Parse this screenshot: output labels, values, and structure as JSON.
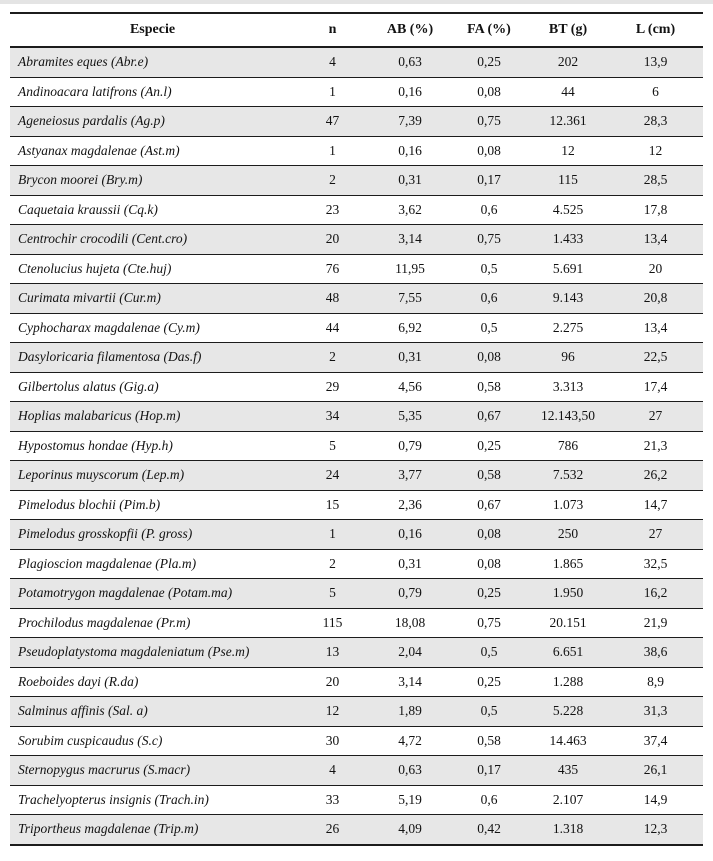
{
  "colors": {
    "row_shade": "#e7e7e7",
    "rule_color": "#1c1c1c",
    "text_color": "#121212",
    "strip_color": "#e4e4e4"
  },
  "table": {
    "columns": [
      {
        "key": "especie",
        "label": "Especie"
      },
      {
        "key": "n",
        "label": "n"
      },
      {
        "key": "ab",
        "label": "AB (%)"
      },
      {
        "key": "fa",
        "label": "FA (%)"
      },
      {
        "key": "bt",
        "label": "BT (g)"
      },
      {
        "key": "l",
        "label": "L (cm)"
      }
    ],
    "rows": [
      {
        "especie": "Abramites eques (Abr.e)",
        "n": "4",
        "ab": "0,63",
        "fa": "0,25",
        "bt": "202",
        "l": "13,9"
      },
      {
        "especie": "Andinoacara latifrons (An.l)",
        "n": "1",
        "ab": "0,16",
        "fa": "0,08",
        "bt": "44",
        "l": "6"
      },
      {
        "especie": "Ageneiosus pardalis (Ag.p)",
        "n": "47",
        "ab": "7,39",
        "fa": "0,75",
        "bt": "12.361",
        "l": "28,3"
      },
      {
        "especie": "Astyanax magdalenae (Ast.m)",
        "n": "1",
        "ab": "0,16",
        "fa": "0,08",
        "bt": "12",
        "l": "12"
      },
      {
        "especie": "Brycon moorei (Bry.m)",
        "n": "2",
        "ab": "0,31",
        "fa": "0,17",
        "bt": "115",
        "l": "28,5"
      },
      {
        "especie": "Caquetaia kraussii (Cq.k)",
        "n": "23",
        "ab": "3,62",
        "fa": "0,6",
        "bt": "4.525",
        "l": "17,8"
      },
      {
        "especie": "Centrochir crocodili (Cent.cro)",
        "n": "20",
        "ab": "3,14",
        "fa": "0,75",
        "bt": "1.433",
        "l": "13,4"
      },
      {
        "especie": "Ctenolucius hujeta (Cte.huj)",
        "n": "76",
        "ab": "11,95",
        "fa": "0,5",
        "bt": "5.691",
        "l": "20"
      },
      {
        "especie": "Curimata mivartii (Cur.m)",
        "n": "48",
        "ab": "7,55",
        "fa": "0,6",
        "bt": "9.143",
        "l": "20,8"
      },
      {
        "especie": "Cyphocharax magdalenae (Cy.m)",
        "n": "44",
        "ab": "6,92",
        "fa": "0,5",
        "bt": "2.275",
        "l": "13,4"
      },
      {
        "especie": "Dasyloricaria filamentosa (Das.f)",
        "n": "2",
        "ab": "0,31",
        "fa": "0,08",
        "bt": "96",
        "l": "22,5"
      },
      {
        "especie": "Gilbertolus alatus (Gig.a)",
        "n": "29",
        "ab": "4,56",
        "fa": "0,58",
        "bt": "3.313",
        "l": "17,4"
      },
      {
        "especie": "Hoplias malabaricus (Hop.m)",
        "n": "34",
        "ab": "5,35",
        "fa": "0,67",
        "bt": "12.143,50",
        "l": "27"
      },
      {
        "especie": "Hypostomus hondae (Hyp.h)",
        "n": "5",
        "ab": "0,79",
        "fa": "0,25",
        "bt": "786",
        "l": "21,3"
      },
      {
        "especie": "Leporinus muyscorum (Lep.m)",
        "n": "24",
        "ab": "3,77",
        "fa": "0,58",
        "bt": "7.532",
        "l": "26,2"
      },
      {
        "especie": "Pimelodus blochii (Pim.b)",
        "n": "15",
        "ab": "2,36",
        "fa": "0,67",
        "bt": "1.073",
        "l": "14,7"
      },
      {
        "especie": "Pimelodus grosskopfii (P. gross)",
        "n": "1",
        "ab": "0,16",
        "fa": "0,08",
        "bt": "250",
        "l": "27"
      },
      {
        "especie": "Plagioscion magdalenae (Pla.m)",
        "n": "2",
        "ab": "0,31",
        "fa": "0,08",
        "bt": "1.865",
        "l": "32,5"
      },
      {
        "especie": "Potamotrygon magdalenae (Potam.ma)",
        "n": "5",
        "ab": "0,79",
        "fa": "0,25",
        "bt": "1.950",
        "l": "16,2"
      },
      {
        "especie": "Prochilodus magdalenae (Pr.m)",
        "n": "115",
        "ab": "18,08",
        "fa": "0,75",
        "bt": "20.151",
        "l": "21,9"
      },
      {
        "especie": "Pseudoplatystoma magdaleniatum (Pse.m)",
        "n": "13",
        "ab": "2,04",
        "fa": "0,5",
        "bt": "6.651",
        "l": "38,6"
      },
      {
        "especie": "Roeboides dayi (R.da)",
        "n": "20",
        "ab": "3,14",
        "fa": "0,25",
        "bt": "1.288",
        "l": "8,9"
      },
      {
        "especie": "Salminus affinis (Sal. a)",
        "n": "12",
        "ab": "1,89",
        "fa": "0,5",
        "bt": "5.228",
        "l": "31,3"
      },
      {
        "especie": "Sorubim cuspicaudus (S.c)",
        "n": "30",
        "ab": "4,72",
        "fa": "0,58",
        "bt": "14.463",
        "l": "37,4"
      },
      {
        "especie": "Sternopygus macrurus (S.macr)",
        "n": "4",
        "ab": "0,63",
        "fa": "0,17",
        "bt": "435",
        "l": "26,1"
      },
      {
        "especie": "Trachelyopterus insignis (Trach.in)",
        "n": "33",
        "ab": "5,19",
        "fa": "0,6",
        "bt": "2.107",
        "l": "14,9"
      },
      {
        "especie": "Triportheus magdalenae (Trip.m)",
        "n": "26",
        "ab": "4,09",
        "fa": "0,42",
        "bt": "1.318",
        "l": "12,3"
      }
    ]
  }
}
